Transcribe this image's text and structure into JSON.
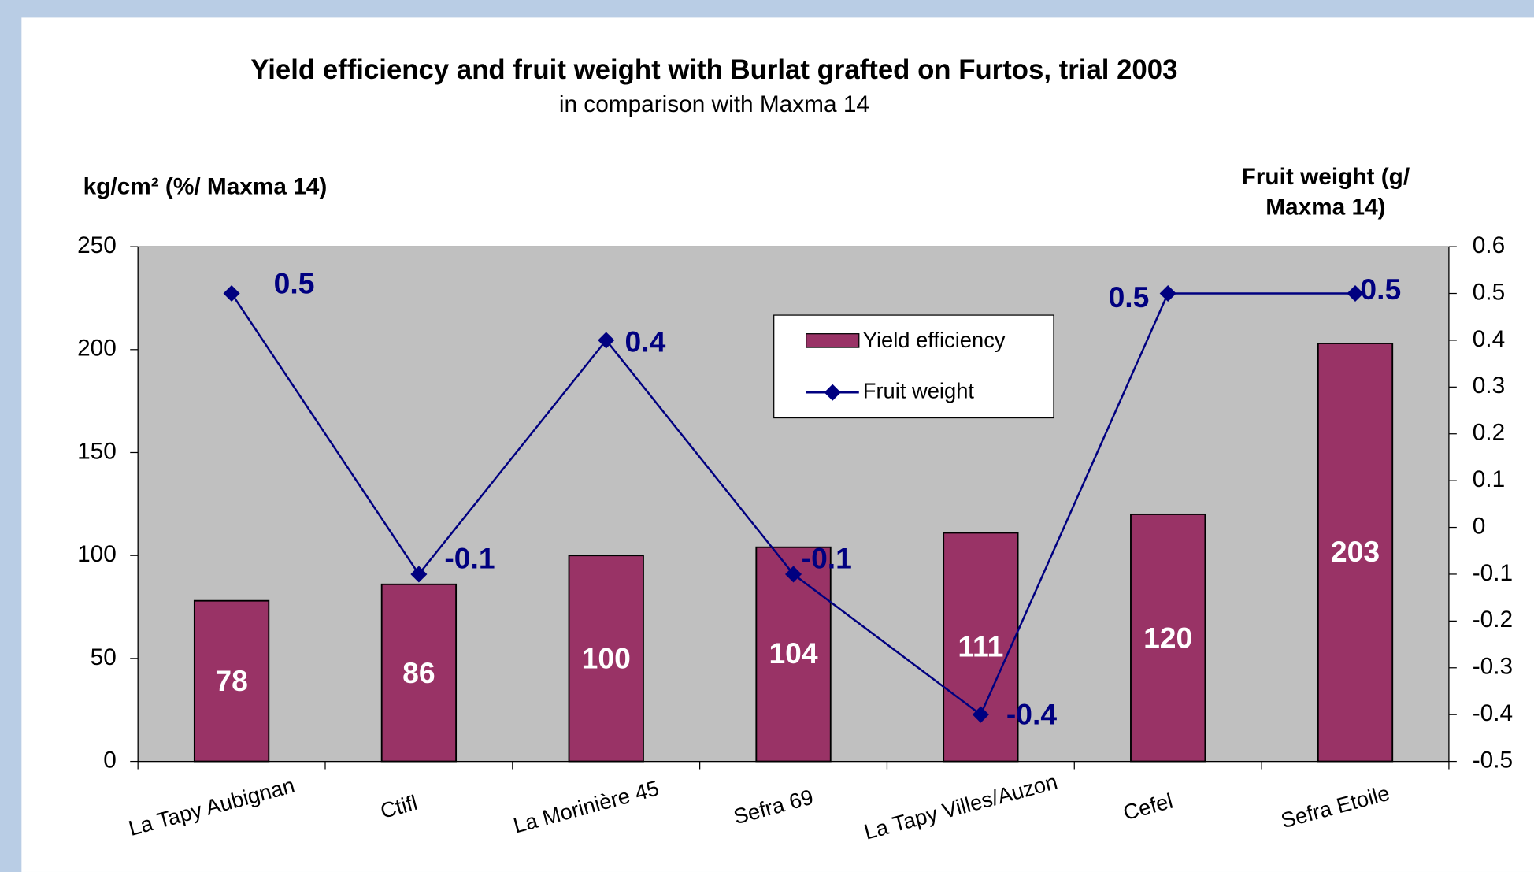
{
  "chart_data": {
    "type": "bar_line",
    "title": "Yield efficiency and fruit weight with Burlat grafted on Furtos, trial 2003",
    "subtitle": "in comparison with Maxma 14",
    "y_label": "kg/cm² (%/ Maxma 14)",
    "y2_label": [
      "Fruit weight (g/",
      "Maxma 14)"
    ],
    "categories": [
      "La Tapy Aubignan",
      "Ctifl",
      "La Morinière 45",
      "Sefra 69",
      "La Tapy Villes/Auzon",
      "Cefel",
      "Sefra Etoile"
    ],
    "series": [
      {
        "name": "Yield efficiency",
        "type": "bar",
        "color": "#993366",
        "values": [
          78,
          86,
          100,
          104,
          111,
          120,
          203
        ]
      },
      {
        "name": "Fruit weight",
        "type": "line",
        "axis": "y2",
        "color": "#000080",
        "values": [
          0.5,
          -0.1,
          0.4,
          -0.1,
          -0.4,
          0.5,
          0.5
        ]
      }
    ],
    "ylim": [
      0,
      250
    ],
    "yticks": [
      0,
      50,
      100,
      150,
      200,
      250
    ],
    "y2lim": [
      -0.5,
      0.6
    ],
    "y2ticks": [
      -0.5,
      -0.4,
      -0.3,
      -0.2,
      -0.1,
      0,
      0.1,
      0.2,
      0.3,
      0.4,
      0.5,
      0.6
    ],
    "plot_background": "#c0c0c0"
  }
}
